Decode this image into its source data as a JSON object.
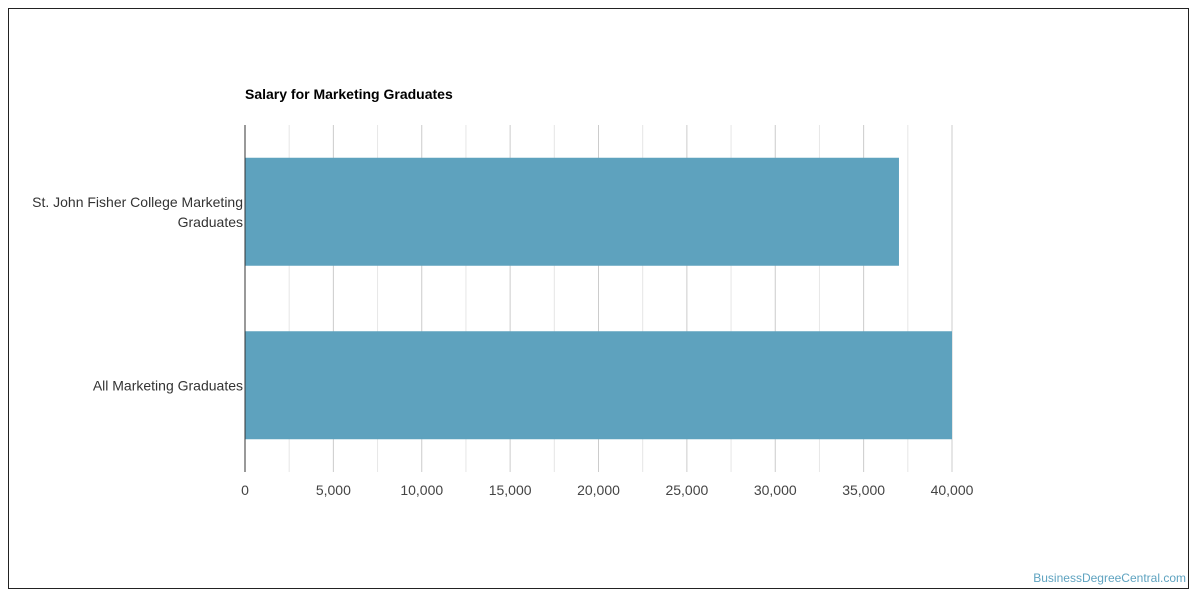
{
  "chart_data": {
    "type": "bar",
    "orientation": "horizontal",
    "title": "Salary for Marketing Graduates",
    "categories": [
      [
        "St. John Fisher College Marketing",
        "Graduates"
      ],
      [
        "All Marketing Graduates"
      ]
    ],
    "values": [
      37000,
      40000
    ],
    "xlim": [
      0,
      40000
    ],
    "x_ticks": [
      0,
      5000,
      10000,
      15000,
      20000,
      25000,
      30000,
      35000,
      40000
    ],
    "x_tick_labels": [
      "0",
      "5,000",
      "10,000",
      "15,000",
      "20,000",
      "25,000",
      "30,000",
      "35,000",
      "40,000"
    ],
    "xlabel": "",
    "ylabel": "",
    "grid": true,
    "bar_color": "#5ea2be"
  },
  "watermark": "BusinessDegreeCentral.com"
}
